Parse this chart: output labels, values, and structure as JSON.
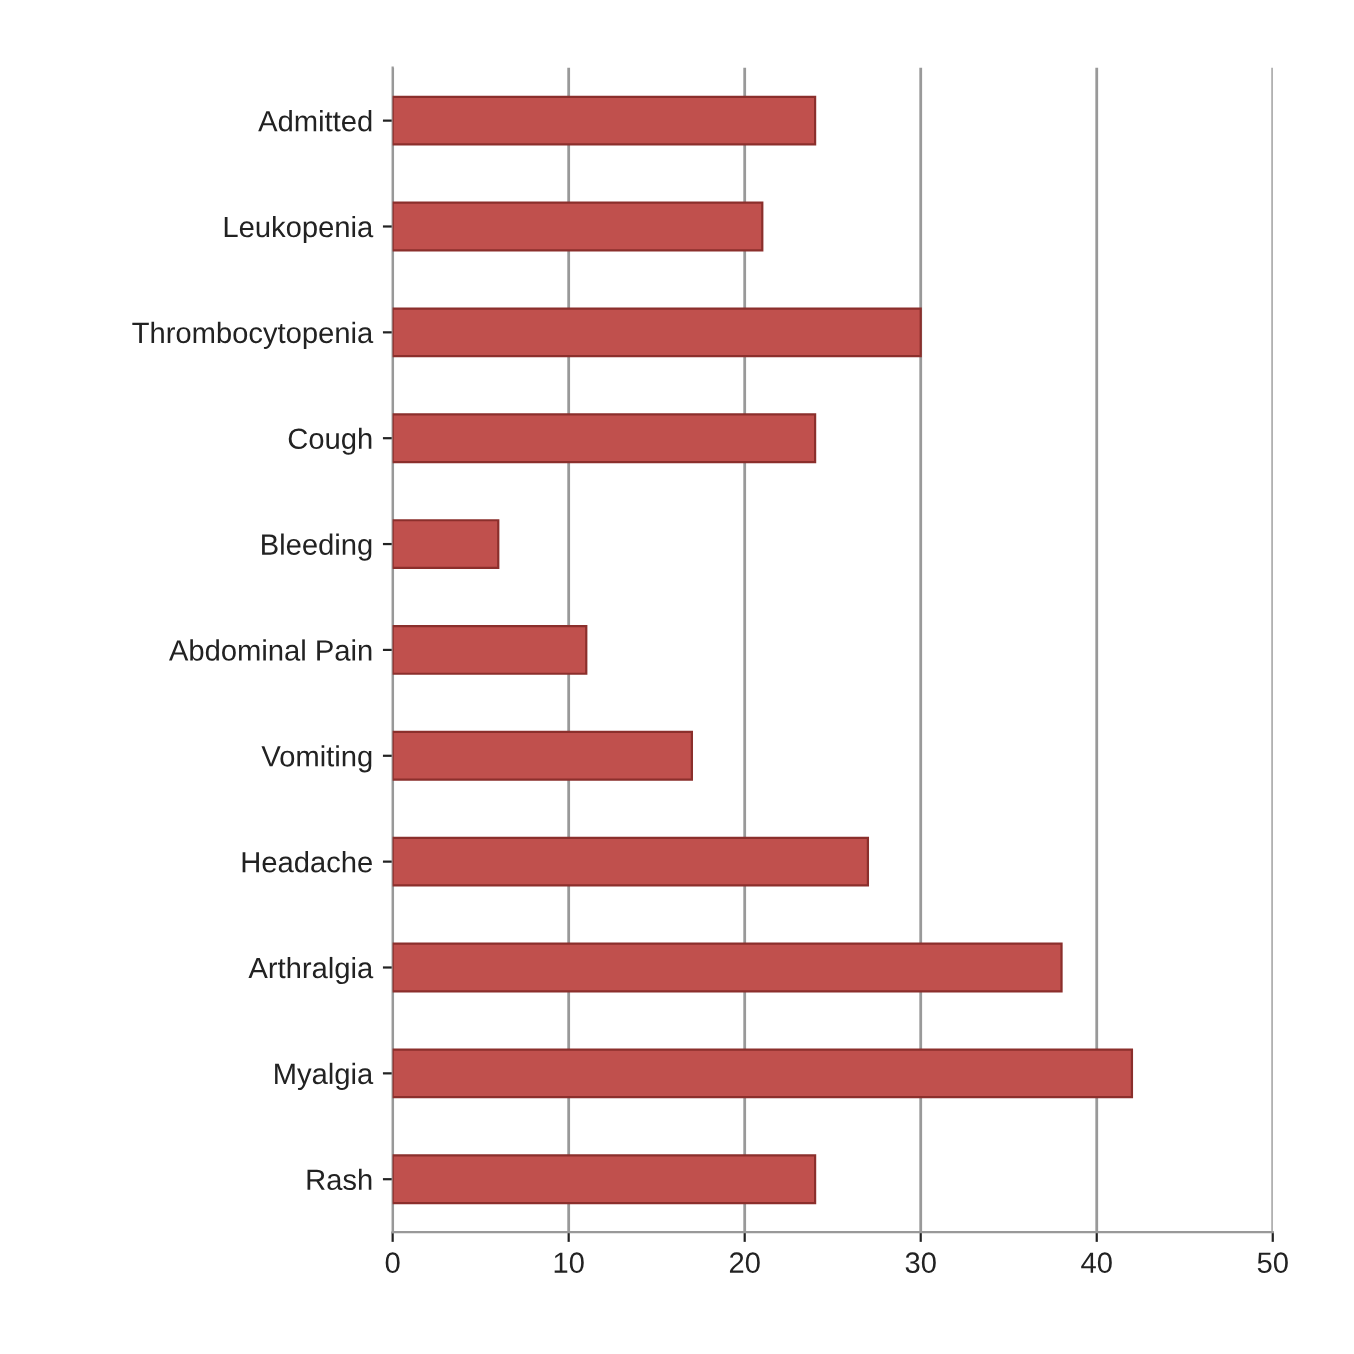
{
  "chart_data": {
    "type": "bar",
    "orientation": "horizontal",
    "categories": [
      "Admitted",
      "Leukopenia",
      "Thrombocytopenia",
      "Cough",
      "Bleeding",
      "Abdominal Pain",
      "Vomiting",
      "Headache",
      "Arthralgia",
      "Myalgia",
      "Rash"
    ],
    "values": [
      24,
      21,
      30,
      24,
      6,
      11,
      17,
      27,
      38,
      42,
      24
    ],
    "color": "#c0504d",
    "xlim": [
      0,
      50
    ],
    "xticks": [
      0,
      10,
      20,
      30,
      40,
      50
    ],
    "grid": "x",
    "legend": false
  }
}
